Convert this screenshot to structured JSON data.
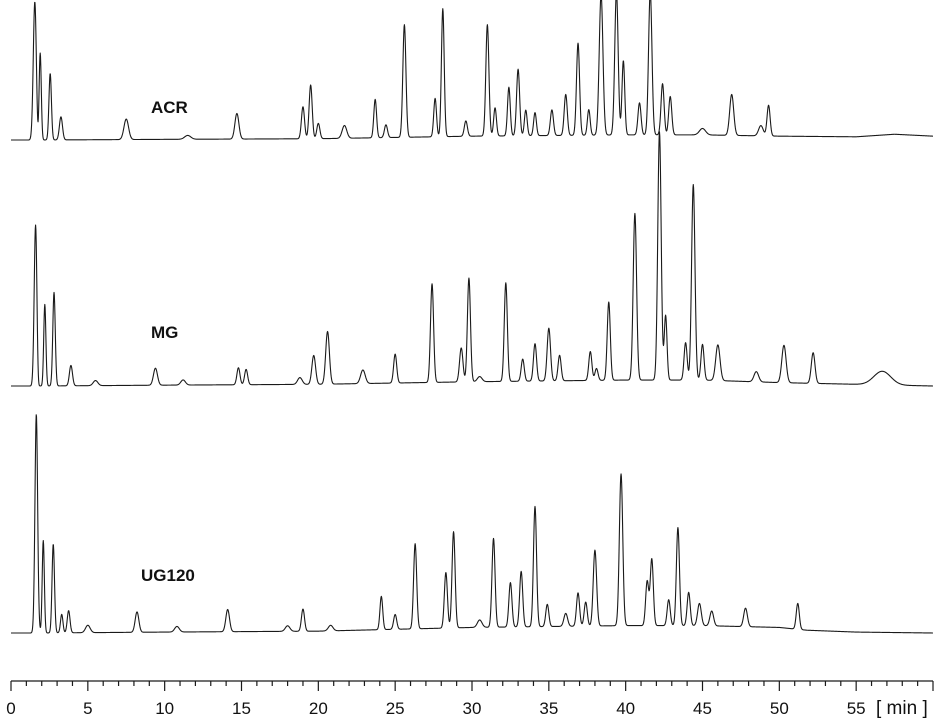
{
  "chart_data": {
    "type": "line",
    "title": "",
    "xlabel": "[ min ]",
    "ylabel": "",
    "xlim": [
      0,
      60
    ],
    "x_ticks": [
      0,
      5,
      10,
      15,
      20,
      25,
      30,
      35,
      40,
      45,
      50,
      55
    ],
    "grid": false,
    "legend": "none",
    "colors": {
      "trace": "#1a1a1a",
      "axis": "#1a1a1a",
      "background": "#ffffff"
    },
    "series": [
      {
        "name": "ACR",
        "baseline": [
          [
            0,
            0
          ],
          [
            2,
            0
          ],
          [
            10,
            0.005
          ],
          [
            20,
            0.01
          ],
          [
            30,
            0.03
          ],
          [
            40,
            0.04
          ],
          [
            45,
            0.04
          ],
          [
            50,
            0.03
          ],
          [
            55,
            0.025
          ],
          [
            57.5,
            0.045
          ],
          [
            60,
            0.03
          ]
        ],
        "peaks": [
          [
            1.55,
            1.08,
            0.1
          ],
          [
            1.9,
            0.68,
            0.07
          ],
          [
            2.55,
            0.52,
            0.08
          ],
          [
            3.25,
            0.18,
            0.1
          ],
          [
            7.5,
            0.16,
            0.15
          ],
          [
            11.5,
            0.03,
            0.2
          ],
          [
            14.7,
            0.2,
            0.13
          ],
          [
            19.0,
            0.25,
            0.1
          ],
          [
            19.5,
            0.42,
            0.1
          ],
          [
            20.0,
            0.12,
            0.1
          ],
          [
            21.7,
            0.1,
            0.15
          ],
          [
            23.7,
            0.3,
            0.09
          ],
          [
            24.4,
            0.1,
            0.1
          ],
          [
            25.6,
            0.88,
            0.1
          ],
          [
            27.6,
            0.3,
            0.09
          ],
          [
            28.1,
            1.0,
            0.09
          ],
          [
            29.6,
            0.12,
            0.1
          ],
          [
            31.0,
            0.87,
            0.1
          ],
          [
            31.5,
            0.22,
            0.09
          ],
          [
            32.4,
            0.38,
            0.09
          ],
          [
            33.0,
            0.52,
            0.1
          ],
          [
            33.5,
            0.2,
            0.09
          ],
          [
            34.1,
            0.18,
            0.09
          ],
          [
            35.2,
            0.2,
            0.1
          ],
          [
            36.1,
            0.32,
            0.1
          ],
          [
            36.9,
            0.72,
            0.1
          ],
          [
            37.6,
            0.2,
            0.09
          ],
          [
            38.4,
            1.1,
            0.12
          ],
          [
            39.4,
            1.12,
            0.11
          ],
          [
            39.85,
            0.58,
            0.09
          ],
          [
            40.9,
            0.25,
            0.1
          ],
          [
            41.6,
            1.12,
            0.11
          ],
          [
            42.4,
            0.4,
            0.1
          ],
          [
            42.9,
            0.3,
            0.1
          ],
          [
            45.0,
            0.05,
            0.2
          ],
          [
            46.9,
            0.32,
            0.13
          ],
          [
            48.8,
            0.08,
            0.15
          ],
          [
            49.3,
            0.24,
            0.1
          ]
        ]
      },
      {
        "name": "MG",
        "baseline": [
          [
            0,
            0
          ],
          [
            2,
            0
          ],
          [
            10,
            0.005
          ],
          [
            20,
            0.01
          ],
          [
            30,
            0.025
          ],
          [
            40,
            0.035
          ],
          [
            45,
            0.035
          ],
          [
            50,
            0.02
          ],
          [
            55,
            0.01
          ],
          [
            60,
            0.0
          ]
        ],
        "peaks": [
          [
            1.6,
            0.95,
            0.09
          ],
          [
            2.2,
            0.48,
            0.07
          ],
          [
            2.8,
            0.55,
            0.08
          ],
          [
            3.9,
            0.12,
            0.1
          ],
          [
            5.5,
            0.03,
            0.15
          ],
          [
            9.4,
            0.1,
            0.13
          ],
          [
            11.2,
            0.03,
            0.15
          ],
          [
            14.8,
            0.1,
            0.1
          ],
          [
            15.3,
            0.09,
            0.1
          ],
          [
            18.8,
            0.04,
            0.15
          ],
          [
            19.7,
            0.17,
            0.12
          ],
          [
            20.6,
            0.31,
            0.12
          ],
          [
            22.9,
            0.08,
            0.15
          ],
          [
            25.0,
            0.17,
            0.1
          ],
          [
            27.4,
            0.58,
            0.1
          ],
          [
            29.3,
            0.2,
            0.11
          ],
          [
            29.8,
            0.61,
            0.1
          ],
          [
            30.5,
            0.03,
            0.15
          ],
          [
            32.2,
            0.58,
            0.1
          ],
          [
            33.3,
            0.13,
            0.1
          ],
          [
            34.1,
            0.22,
            0.1
          ],
          [
            35.0,
            0.31,
            0.11
          ],
          [
            35.7,
            0.15,
            0.1
          ],
          [
            37.7,
            0.17,
            0.1
          ],
          [
            38.1,
            0.07,
            0.1
          ],
          [
            38.9,
            0.46,
            0.1
          ],
          [
            40.6,
            0.98,
            0.11
          ],
          [
            42.2,
            1.46,
            0.11
          ],
          [
            42.6,
            0.38,
            0.09
          ],
          [
            43.9,
            0.22,
            0.1
          ],
          [
            44.4,
            1.15,
            0.11
          ],
          [
            45.0,
            0.21,
            0.1
          ],
          [
            46.0,
            0.21,
            0.14
          ],
          [
            48.5,
            0.06,
            0.15
          ],
          [
            50.3,
            0.22,
            0.14
          ],
          [
            52.2,
            0.18,
            0.12
          ],
          [
            56.7,
            0.08,
            0.55
          ]
        ]
      },
      {
        "name": "UG120",
        "baseline": [
          [
            0,
            0
          ],
          [
            2,
            0
          ],
          [
            10,
            0.005
          ],
          [
            20,
            0.01
          ],
          [
            30,
            0.03
          ],
          [
            40,
            0.04
          ],
          [
            45,
            0.04
          ],
          [
            50,
            0.03
          ],
          [
            51.8,
            0.015
          ],
          [
            55,
            0.005
          ],
          [
            60,
            0.0
          ]
        ],
        "peaks": [
          [
            1.65,
            1.2,
            0.09
          ],
          [
            2.1,
            0.5,
            0.07
          ],
          [
            2.75,
            0.48,
            0.08
          ],
          [
            3.3,
            0.1,
            0.08
          ],
          [
            3.75,
            0.12,
            0.09
          ],
          [
            5.0,
            0.04,
            0.15
          ],
          [
            8.2,
            0.11,
            0.12
          ],
          [
            10.8,
            0.03,
            0.15
          ],
          [
            14.1,
            0.12,
            0.12
          ],
          [
            18.0,
            0.03,
            0.15
          ],
          [
            19.0,
            0.12,
            0.1
          ],
          [
            20.8,
            0.03,
            0.15
          ],
          [
            24.1,
            0.18,
            0.09
          ],
          [
            25.0,
            0.08,
            0.1
          ],
          [
            26.3,
            0.46,
            0.1
          ],
          [
            28.3,
            0.3,
            0.1
          ],
          [
            28.8,
            0.52,
            0.1
          ],
          [
            30.5,
            0.04,
            0.15
          ],
          [
            31.4,
            0.48,
            0.1
          ],
          [
            32.5,
            0.24,
            0.1
          ],
          [
            33.2,
            0.3,
            0.1
          ],
          [
            34.1,
            0.65,
            0.1
          ],
          [
            34.9,
            0.12,
            0.1
          ],
          [
            36.1,
            0.07,
            0.12
          ],
          [
            36.9,
            0.18,
            0.1
          ],
          [
            37.4,
            0.13,
            0.1
          ],
          [
            38.0,
            0.41,
            0.11
          ],
          [
            39.7,
            0.82,
            0.11
          ],
          [
            41.4,
            0.24,
            0.1
          ],
          [
            41.7,
            0.36,
            0.1
          ],
          [
            42.8,
            0.14,
            0.1
          ],
          [
            43.4,
            0.53,
            0.1
          ],
          [
            44.1,
            0.18,
            0.1
          ],
          [
            44.8,
            0.12,
            0.12
          ],
          [
            45.6,
            0.08,
            0.12
          ],
          [
            47.8,
            0.1,
            0.12
          ],
          [
            51.2,
            0.14,
            0.1
          ]
        ]
      }
    ]
  }
}
